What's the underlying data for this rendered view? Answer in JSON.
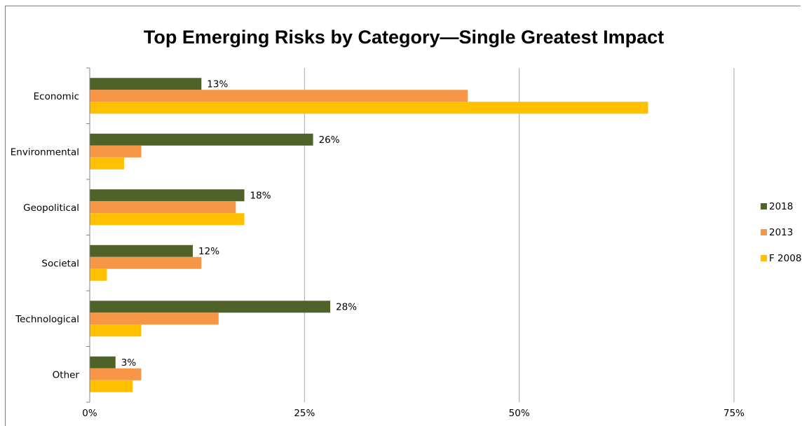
{
  "chart_data": {
    "type": "bar",
    "orientation": "horizontal",
    "title": "Top Emerging Risks by Category—Single Greatest Impact",
    "categories": [
      "Economic",
      "Environmental",
      "Geopolitical",
      "Societal",
      "Technological",
      "Other"
    ],
    "series": [
      {
        "name": "2018",
        "color": "#4f6228",
        "values": [
          13,
          26,
          18,
          12,
          28,
          3
        ],
        "data_labels": [
          "13%",
          "26%",
          "18%",
          "12%",
          "28%",
          "3%"
        ]
      },
      {
        "name": "2013",
        "color": "#f79646",
        "values": [
          44,
          6,
          17,
          13,
          15,
          6
        ]
      },
      {
        "name": "F 2008",
        "color": "#ffc000",
        "values": [
          65,
          4,
          18,
          2,
          6,
          5
        ]
      }
    ],
    "xlim": [
      0,
      75
    ],
    "xticks": [
      0,
      25,
      50,
      75
    ],
    "xtick_labels": [
      "0%",
      "25%",
      "50%",
      "75%"
    ],
    "grid": true,
    "legend_position": "right"
  }
}
